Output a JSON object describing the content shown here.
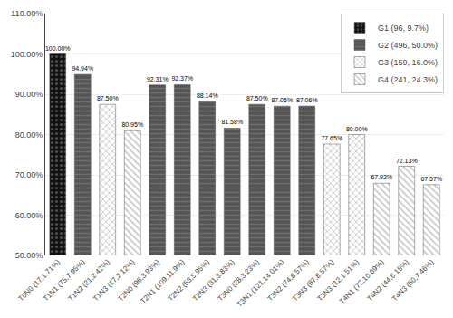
{
  "chart_data": {
    "type": "bar",
    "categories": [
      "T0N0 (17,1,71%)",
      "T1N1 (75,7.95%)",
      "T1N2 (21,2.42%)",
      "T1N3 (17,2.12%)",
      "T2N0 (96,3.93%)",
      "T2N1 (109,11.9%)",
      "T2N2 (53,5.95%)",
      "T2N3 (31,3.83%)",
      "T3N0 (28,3.23%)",
      "T3N1 (121,14.01%)",
      "T3N2 (74,8.57%)",
      "T3N3 (87,8.57%)",
      "T3N3 (12,1.51%)",
      "T4N1 (72,10.69%)",
      "T4N2 (44,6.15%)",
      "T4N3 (50,7.46%)"
    ],
    "series": [
      {
        "name": "G1 (96, 9.7%)",
        "color": "#111111",
        "values": [
          100.0,
          null,
          null,
          null,
          null,
          null,
          null,
          null,
          null,
          null,
          null,
          null,
          null,
          null,
          null,
          null
        ],
        "value_labels": [
          "100.00%",
          null,
          null,
          null,
          null,
          null,
          null,
          null,
          null,
          null,
          null,
          null,
          null,
          null,
          null,
          null
        ]
      },
      {
        "name": "G2 (496, 50.0%)",
        "color": "#555555",
        "values": [
          null,
          94.94,
          null,
          null,
          92.31,
          92.37,
          88.14,
          81.58,
          87.5,
          87.05,
          87.06,
          null,
          null,
          null,
          null,
          null
        ],
        "value_labels": [
          null,
          "94.94%",
          null,
          null,
          "92.31%",
          "92.37%",
          "88.14%",
          "81.58%",
          "87.50%",
          "87.05%",
          "87.06%",
          null,
          null,
          null,
          null,
          null
        ]
      },
      {
        "name": "G3 (159, 16.0%)",
        "color": "#ffffff",
        "values": [
          null,
          null,
          87.5,
          null,
          null,
          null,
          null,
          null,
          null,
          null,
          null,
          77.65,
          80.0,
          null,
          null,
          null
        ],
        "value_labels": [
          null,
          null,
          "87.50%",
          null,
          null,
          null,
          null,
          null,
          null,
          null,
          null,
          "77.65%",
          "80.00%",
          null,
          null,
          null
        ]
      },
      {
        "name": "G4 (241, 24.3%)",
        "color": "#ffffff",
        "values": [
          null,
          null,
          null,
          80.95,
          null,
          null,
          null,
          null,
          null,
          null,
          null,
          null,
          null,
          67.92,
          72.13,
          67.57
        ],
        "value_labels": [
          null,
          null,
          null,
          "80.95%",
          null,
          null,
          null,
          null,
          null,
          null,
          null,
          null,
          null,
          "67.92%",
          "72.13%",
          "67.57%"
        ]
      }
    ],
    "ylim": [
      50,
      110
    ],
    "yticks": [
      {
        "value": 50,
        "label": "50.00%"
      },
      {
        "value": 60,
        "label": "60.00%"
      },
      {
        "value": 70,
        "label": "70.00%"
      },
      {
        "value": 80,
        "label": "80.00%"
      },
      {
        "value": 90,
        "label": "90.00%"
      },
      {
        "value": 100,
        "label": "100.00%"
      },
      {
        "value": 110,
        "label": "110.00%"
      }
    ],
    "grid": true,
    "legend": "upper right",
    "data_labels": true
  }
}
